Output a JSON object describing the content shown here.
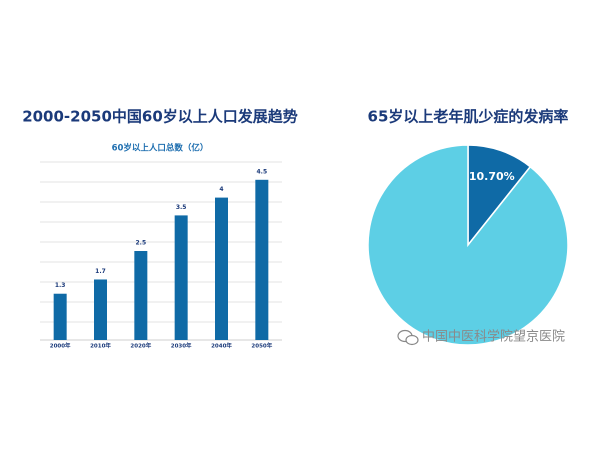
{
  "chart_data": [
    {
      "type": "bar",
      "title": "2000-2050中国60岁以上人口发展趋势",
      "subtitle": "60岁以上人口总数（亿）",
      "categories": [
        "2000年",
        "2010年",
        "2020年",
        "2030年",
        "2040年",
        "2050年"
      ],
      "values": [
        1.3,
        1.7,
        2.5,
        3.5,
        4,
        4.5
      ],
      "color": "#0f6aa6",
      "ylim": [
        0,
        5
      ],
      "grid": true
    },
    {
      "type": "pie",
      "title": "65岁以上老年肌少症的发病率",
      "values": [
        10.7,
        89.3
      ],
      "value_labels": [
        "10.70%",
        null
      ],
      "colors": [
        "#0f6aa6",
        "#5dcfe5"
      ]
    }
  ],
  "watermark": "中国中医科学院望京医院"
}
